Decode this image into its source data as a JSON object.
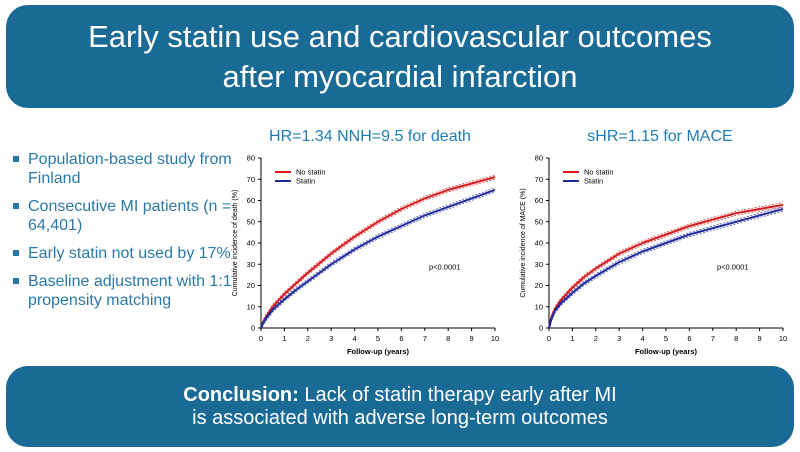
{
  "header": {
    "title_line1": "Early statin use and cardiovascular outcomes",
    "title_line2": "after myocardial infarction"
  },
  "bullets": [
    "Population-based study from Finland",
    "Consecutive MI patients (n = 64,401)",
    "Early statin not used by 17%",
    "Baseline adjustment with 1:1 propensity matching"
  ],
  "conclusion": {
    "label": "Conclusion:",
    "line1_rest": " Lack of statin therapy early after MI",
    "line2": "is associated with adverse long-term outcomes"
  },
  "colors": {
    "banner": "#1a6a96",
    "bullet_text": "#2a78a8",
    "chart_title": "#1d7db5",
    "no_statin": "#d7191c",
    "statin": "#1f2a9b"
  },
  "chart_data": [
    {
      "type": "line",
      "title": "HR=1.34 NNH=9.5 for death",
      "xlabel": "Follow-up (years)",
      "ylabel": "Cumulative incidence of death (%)",
      "xlim": [
        0,
        10
      ],
      "ylim": [
        0,
        80
      ],
      "xticks": [
        0,
        1,
        2,
        3,
        4,
        5,
        6,
        7,
        8,
        9,
        10
      ],
      "yticks": [
        0,
        10,
        20,
        30,
        40,
        50,
        60,
        70,
        80
      ],
      "annotation": "p<0.0001",
      "legend_position": "top-left",
      "x": [
        0,
        0.1,
        0.25,
        0.5,
        1,
        1.5,
        2,
        3,
        4,
        5,
        6,
        7,
        8,
        9,
        10
      ],
      "series": [
        {
          "name": "No statin",
          "color": "#d7191c",
          "values": [
            0,
            3,
            6,
            10,
            16,
            21,
            26,
            35,
            43,
            50,
            56,
            61,
            65,
            68,
            71
          ]
        },
        {
          "name": "Statin",
          "color": "#1f2a9b",
          "values": [
            0,
            2.5,
            5,
            8.5,
            13.5,
            18,
            22,
            30,
            37,
            43,
            48,
            53,
            57,
            61,
            65
          ]
        }
      ]
    },
    {
      "type": "line",
      "title": "sHR=1.15 for MACE",
      "xlabel": "Follow-up (years)",
      "ylabel": "Cumulative incidence of MACE (%)",
      "xlim": [
        0,
        10
      ],
      "ylim": [
        0,
        80
      ],
      "xticks": [
        0,
        1,
        2,
        3,
        4,
        5,
        6,
        7,
        8,
        9,
        10
      ],
      "yticks": [
        0,
        10,
        20,
        30,
        40,
        50,
        60,
        70,
        80
      ],
      "annotation": "p<0.0001",
      "legend_position": "top-left",
      "x": [
        0,
        0.1,
        0.25,
        0.5,
        1,
        1.5,
        2,
        3,
        4,
        5,
        6,
        7,
        8,
        9,
        10
      ],
      "series": [
        {
          "name": "No statin",
          "color": "#d7191c",
          "values": [
            0,
            5,
            9,
            13,
            19,
            24,
            28,
            35,
            40,
            44,
            48,
            51,
            54,
            56,
            58
          ]
        },
        {
          "name": "Statin",
          "color": "#1f2a9b",
          "values": [
            0,
            4,
            8,
            11.5,
            16.5,
            21,
            24.5,
            31,
            36,
            40,
            44,
            47,
            50,
            53,
            56
          ]
        }
      ]
    }
  ]
}
